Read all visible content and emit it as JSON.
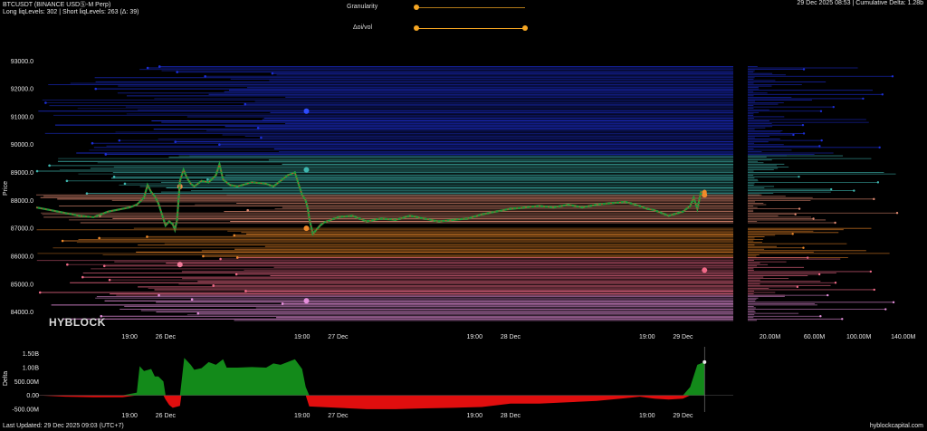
{
  "header": {
    "symbol": "BTCUSDT (BINANCE USDⓈ-M Perp)",
    "liq_levels": "Long liqLevels: 302 | Short liqLevels: 263 (Δ: 39)",
    "date_delta": "29 Dec 2025 08:53 | Cumulative Delta: 1.28b"
  },
  "controls": {
    "granularity_label": "Granularity",
    "oi_vol_label": "Δoi/vol",
    "granularity_value": 0,
    "oi_vol_range": [
      0,
      1
    ]
  },
  "footer": {
    "last_updated": "Last Updated: 29 Dec 2025 09:03 (UTC+7)",
    "site": "hyblockcapital.com"
  },
  "watermark": "HYBLOCK",
  "chart_data": {
    "type": "line",
    "price_axis": {
      "label": "Price",
      "ticks": [
        "93000.0",
        "92000.0",
        "91000.0",
        "90000.0",
        "89000.0",
        "88000.0",
        "87000.0",
        "86000.0",
        "85000.0",
        "84000.0"
      ],
      "tick_values": [
        93000,
        92000,
        91000,
        90000,
        89000,
        88000,
        87000,
        86000,
        85000,
        84000
      ],
      "range": [
        83500,
        93400
      ]
    },
    "x_axis": {
      "ticks": [
        "19:00",
        "26 Dec",
        "19:00",
        "27 Dec",
        "19:00",
        "28 Dec",
        "19:00",
        "29 Dec"
      ],
      "tick_positions_hours": [
        -5,
        0,
        19,
        24,
        43,
        48,
        67,
        72
      ]
    },
    "hours_range": [
      -18,
      79
    ],
    "price_series": [
      [
        -18,
        87750
      ],
      [
        -16,
        87650
      ],
      [
        -14,
        87550
      ],
      [
        -12,
        87450
      ],
      [
        -10,
        87400
      ],
      [
        -8,
        87600
      ],
      [
        -6,
        87700
      ],
      [
        -5,
        87750
      ],
      [
        -4,
        87850
      ],
      [
        -3,
        88100
      ],
      [
        -2.5,
        88550
      ],
      [
        -2,
        88300
      ],
      [
        -1.5,
        88150
      ],
      [
        -1,
        87900
      ],
      [
        -0.5,
        87500
      ],
      [
        0,
        87100
      ],
      [
        0.5,
        87250
      ],
      [
        1,
        87150
      ],
      [
        1.3,
        86950
      ],
      [
        1.6,
        87300
      ],
      [
        2,
        88700
      ],
      [
        2.5,
        89100
      ],
      [
        3,
        88800
      ],
      [
        3.5,
        88600
      ],
      [
        4,
        88500
      ],
      [
        5,
        88700
      ],
      [
        6,
        88650
      ],
      [
        7,
        88900
      ],
      [
        7.5,
        89300
      ],
      [
        8,
        88750
      ],
      [
        9,
        88550
      ],
      [
        10,
        88500
      ],
      [
        12,
        88650
      ],
      [
        14,
        88600
      ],
      [
        15,
        88500
      ],
      [
        16,
        88700
      ],
      [
        17,
        88900
      ],
      [
        18,
        89000
      ],
      [
        18.5,
        88600
      ],
      [
        19,
        88200
      ],
      [
        19.5,
        88000
      ],
      [
        19.8,
        87700
      ],
      [
        20,
        87350
      ],
      [
        20.5,
        86800
      ],
      [
        21,
        86950
      ],
      [
        21.5,
        87100
      ],
      [
        22,
        87200
      ],
      [
        23,
        87300
      ],
      [
        24,
        87400
      ],
      [
        26,
        87450
      ],
      [
        28,
        87250
      ],
      [
        30,
        87350
      ],
      [
        32,
        87300
      ],
      [
        34,
        87450
      ],
      [
        36,
        87350
      ],
      [
        38,
        87250
      ],
      [
        40,
        87300
      ],
      [
        42,
        87350
      ],
      [
        44,
        87500
      ],
      [
        46,
        87600
      ],
      [
        48,
        87700
      ],
      [
        50,
        87750
      ],
      [
        52,
        87800
      ],
      [
        54,
        87750
      ],
      [
        56,
        87850
      ],
      [
        58,
        87750
      ],
      [
        60,
        87850
      ],
      [
        62,
        87900
      ],
      [
        64,
        87950
      ],
      [
        66,
        87800
      ],
      [
        67,
        87700
      ],
      [
        68,
        87650
      ],
      [
        70,
        87450
      ],
      [
        72,
        87600
      ],
      [
        73,
        87800
      ],
      [
        73.5,
        88100
      ],
      [
        74,
        87700
      ],
      [
        74.5,
        88300
      ],
      [
        75,
        88300
      ]
    ],
    "heatmap_level_ranges": [
      {
        "from": 92800,
        "to": 89600,
        "color": "#1c2fd8"
      },
      {
        "from": 89600,
        "to": 88200,
        "color": "#3fb7b0"
      },
      {
        "from": 88200,
        "to": 87200,
        "color": "#e08a72"
      },
      {
        "from": 87000,
        "to": 85950,
        "color": "#f08a2a"
      },
      {
        "from": 85950,
        "to": 84600,
        "color": "#f06a88"
      },
      {
        "from": 84600,
        "to": 83700,
        "color": "#e58fdc"
      }
    ],
    "liq_axis": {
      "ticks": [
        "20.00M",
        "60.00M",
        "100.00M",
        "140.00M"
      ],
      "tick_values": [
        20,
        60,
        100,
        140
      ],
      "range": [
        0,
        150
      ]
    },
    "delta_axis": {
      "label": "Delta",
      "ticks": [
        "1.50B",
        "1.00B",
        "500.00M",
        "0.00",
        "-500.00M"
      ],
      "tick_values": [
        1.5,
        1.0,
        0.5,
        0,
        -0.5
      ],
      "range": [
        -0.6,
        1.75
      ]
    },
    "delta_series": [
      [
        -18,
        0
      ],
      [
        -14,
        -0.05
      ],
      [
        -10,
        -0.07
      ],
      [
        -6,
        -0.07
      ],
      [
        -4,
        0.1
      ],
      [
        -3.6,
        1.05
      ],
      [
        -3,
        0.88
      ],
      [
        -2,
        0.95
      ],
      [
        -1.5,
        0.68
      ],
      [
        -1,
        0.68
      ],
      [
        -0.3,
        0.5
      ],
      [
        0,
        -0.15
      ],
      [
        0.5,
        -0.35
      ],
      [
        1,
        -0.45
      ],
      [
        2,
        -0.38
      ],
      [
        2.2,
        0.45
      ],
      [
        2.6,
        1.35
      ],
      [
        3.5,
        1.1
      ],
      [
        4,
        0.92
      ],
      [
        5,
        0.98
      ],
      [
        6,
        1.2
      ],
      [
        7,
        1.1
      ],
      [
        8,
        1.3
      ],
      [
        8.5,
        1.0
      ],
      [
        10,
        1.0
      ],
      [
        12,
        1.02
      ],
      [
        14,
        1.0
      ],
      [
        15,
        1.15
      ],
      [
        16,
        1.1
      ],
      [
        18,
        1.3
      ],
      [
        19,
        0.95
      ],
      [
        19.5,
        0.3
      ],
      [
        20,
        -0.4
      ],
      [
        24,
        -0.45
      ],
      [
        28,
        -0.5
      ],
      [
        32,
        -0.5
      ],
      [
        36,
        -0.47
      ],
      [
        40,
        -0.45
      ],
      [
        44,
        -0.42
      ],
      [
        48,
        -0.3
      ],
      [
        52,
        -0.3
      ],
      [
        56,
        -0.25
      ],
      [
        60,
        -0.2
      ],
      [
        64,
        -0.1
      ],
      [
        66,
        -0.05
      ],
      [
        68,
        -0.12
      ],
      [
        70,
        -0.15
      ],
      [
        72,
        -0.12
      ],
      [
        73,
        0.3
      ],
      [
        74,
        1.1
      ],
      [
        75,
        1.2
      ]
    ]
  }
}
